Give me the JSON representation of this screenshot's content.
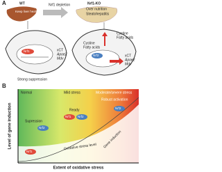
{
  "panel_a": {
    "label": "A",
    "wt": {
      "title": "WT",
      "subtitle": "Keep liver healthy"
    },
    "transition": "Nrf1 depletion",
    "ko": {
      "title": "Nrf1-KO",
      "lines": [
        "Over nutrition",
        "Steatohepatitis"
      ]
    },
    "left_cell": {
      "protein": "Nrf1",
      "genes": [
        "xCT",
        "Apoe2",
        "Mdv"
      ],
      "caption": "Strong suppression"
    },
    "right_cell": {
      "inputs": [
        "Cystine",
        "Fatty acids"
      ],
      "inner_inputs": [
        "Cystine",
        "Fatty acids"
      ],
      "protein": "Nrf2",
      "genes": [
        "xCT",
        "Apoe2",
        "Mdv"
      ]
    }
  },
  "panel_b": {
    "label": "B",
    "zones": [
      "Normal",
      "Mild stress",
      "Moderate/severe stress"
    ],
    "events": [
      "Supression",
      "Ready",
      "Robust activation"
    ],
    "proteins": [
      "Nrf1",
      "Nrf2",
      "Nrf1",
      "Nrf2",
      "Nrf2"
    ],
    "curves": [
      "Oxidative stress level",
      "Gene induction"
    ],
    "y_axis": "Level of gene induction",
    "x_axis": "Extent of oxidative stress"
  }
}
